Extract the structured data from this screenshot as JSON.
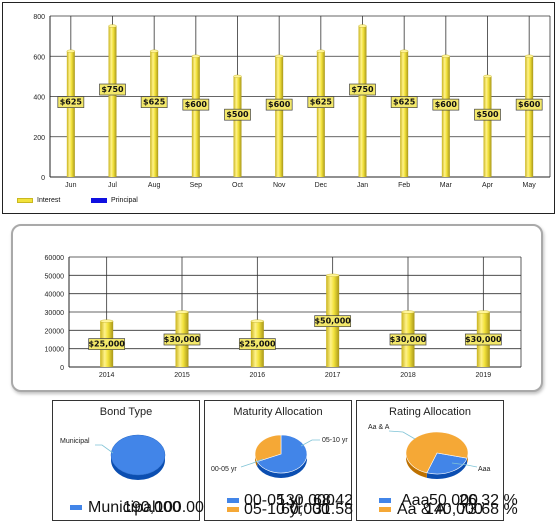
{
  "chart_data": [
    {
      "type": "bar",
      "categories": [
        "Jun",
        "Jul",
        "Aug",
        "Sep",
        "Oct",
        "Nov",
        "Dec",
        "Jan",
        "Feb",
        "Mar",
        "Apr",
        "May"
      ],
      "series": [
        {
          "name": "Interest",
          "values": [
            625,
            750,
            625,
            600,
            500,
            600,
            625,
            750,
            625,
            600,
            500,
            600
          ]
        },
        {
          "name": "Principal",
          "values": [
            0,
            0,
            0,
            0,
            0,
            0,
            0,
            0,
            0,
            0,
            0,
            0
          ]
        }
      ],
      "data_labels": [
        "$625",
        "$750",
        "$625",
        "$600",
        "$500",
        "$600",
        "$625",
        "$750",
        "$625",
        "$600",
        "$500",
        "$600"
      ],
      "ylim": [
        0,
        800
      ],
      "yticks": [
        "0",
        "200",
        "400",
        "600",
        "800"
      ],
      "grid": true,
      "legend": "bottom-left"
    },
    {
      "type": "bar",
      "categories": [
        "2014",
        "2015",
        "2016",
        "2017",
        "2018",
        "2019"
      ],
      "values": [
        25000,
        30000,
        25000,
        50000,
        30000,
        30000
      ],
      "data_labels": [
        "$25,000",
        "$30,000",
        "$25,000",
        "$50,000",
        "$30,000",
        "$30,000"
      ],
      "ylim": [
        0,
        60000
      ],
      "yticks": [
        "0",
        "10000",
        "20000",
        "30000",
        "40000",
        "50000",
        "60000"
      ],
      "grid": true
    },
    {
      "type": "pie",
      "title": "Bond Type",
      "slices": [
        {
          "label": "Municipal",
          "value": 190000,
          "value_text": "190,000",
          "percent_text": "100.00 %",
          "color": "#4285e8"
        }
      ]
    },
    {
      "type": "pie",
      "title": "Maturity Allocation",
      "slices": [
        {
          "label": "00-05 yr",
          "value": 130000,
          "value_text": "130,000",
          "percent_text": "68.42 %",
          "color": "#4285e8"
        },
        {
          "label": "05-10 yr",
          "value": 60000,
          "value_text": "60,000",
          "percent_text": "31.58 %",
          "color": "#f5a836"
        }
      ]
    },
    {
      "type": "pie",
      "title": "Rating Allocation",
      "slices": [
        {
          "label": "Aaa",
          "value": 50000,
          "value_text": "50,000",
          "percent_text": "26.32 %",
          "color": "#4285e8"
        },
        {
          "label": "Aa & A",
          "value": 140000,
          "value_text": "140,000",
          "percent_text": "73.68 %",
          "color": "#f5a836"
        }
      ]
    }
  ],
  "colors": {
    "interest": "#f2e23a",
    "principal": "#1010e0",
    "bar_dark": "#b7a21a",
    "label_bg": "#f3e86a"
  }
}
